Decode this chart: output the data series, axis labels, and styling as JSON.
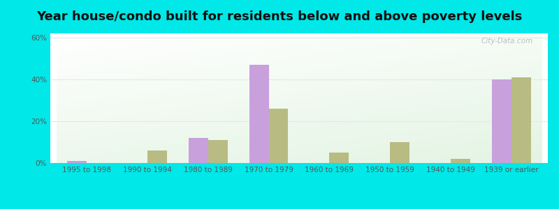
{
  "title": "Year house/condo built for residents below and above poverty levels",
  "categories": [
    "1995 to 1998",
    "1990 to 1994",
    "1980 to 1989",
    "1970 to 1979",
    "1960 to 1969",
    "1950 to 1959",
    "1940 to 1949",
    "1939 or earlier"
  ],
  "below_poverty": [
    1.0,
    0.0,
    12.0,
    47.0,
    0.0,
    0.0,
    0.0,
    40.0
  ],
  "above_poverty": [
    0.0,
    6.0,
    11.0,
    26.0,
    5.0,
    10.0,
    2.0,
    41.0
  ],
  "below_color": "#c8a0dc",
  "above_color": "#b8bc82",
  "outer_bg": "#00e8e8",
  "ylim": [
    0,
    62
  ],
  "yticks": [
    0,
    20,
    40,
    60
  ],
  "ytick_labels": [
    "0%",
    "20%",
    "40%",
    "60%"
  ],
  "grid_color": "#e0ece0",
  "title_fontsize": 13,
  "tick_fontsize": 7.5,
  "legend_fontsize": 9,
  "bar_width": 0.32
}
